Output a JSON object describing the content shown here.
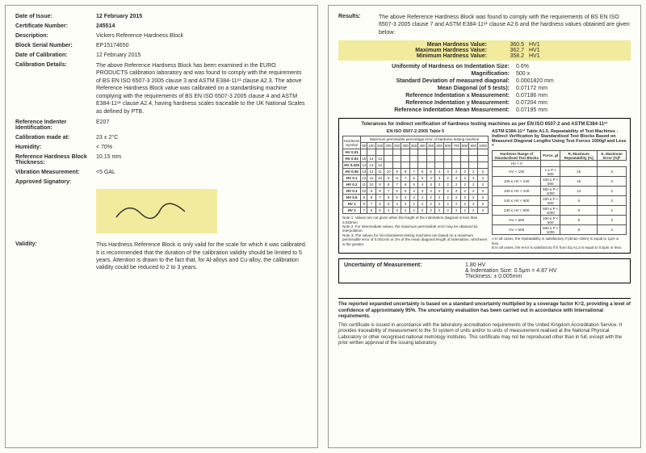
{
  "left": {
    "date_of_issue": {
      "label": "Date of Issue:",
      "value": "12 February 2015"
    },
    "cert_number": {
      "label": "Certificate Number:",
      "value": "245514"
    },
    "description": {
      "label": "Description:",
      "value": "Vickers Reference Hardness Block"
    },
    "serial": {
      "label": "Block Serial Number:",
      "value": "EP15174650"
    },
    "date_cal": {
      "label": "Date of Calibration:",
      "value": "12 February 2015"
    },
    "cal_details": {
      "label": "Calibration Details:",
      "value": "The above Reference Hardness Block has been examined in the EURO PRODUCTS calibration laboratory and was found to comply with the requirements of BS EN ISO 6507-3 2005 clause 3 and ASTM E384-11ᵉ¹ clause A2.3. The above Reference Hardness Block value was calibrated on a standardising machine complying with the requirements of BS EN ISO 6507-3 2005 clause 4 and ASTM E384-11ᵉ¹ clause A2.4, having hardness scales traceable to the UK National Scales as defined by PTB."
    },
    "indenter": {
      "label": "Reference Indenter Identification:",
      "value": "E207"
    },
    "cal_at": {
      "label": "Calibration made at:",
      "value": "23 ± 2°C"
    },
    "humidity": {
      "label": "Humidity:",
      "value": "< 70%"
    },
    "thickness": {
      "label": "Reference Hardness Block Thickness:",
      "value": "10.15 mm"
    },
    "vibration": {
      "label": "Vibration Measurement:",
      "value": "<5 GAL"
    },
    "signatory": {
      "label": "Approved Signatory:"
    },
    "validity": {
      "label": "Validity:",
      "value": "This Hardness Reference Block is only valid for the scale for which it was calibrated. It is recommended that the duration of the calibration validity should be limited to 5 years. Attention is drawn to the fact that, for Al-alloys and Cu-alloy, the calibration validity could be reduced to 2 to 3 years."
    }
  },
  "right": {
    "results": {
      "label": "Results:",
      "value": "The above Reference Hardness Block was found to comply with the requirements of BS EN ISO 6507-3 2005 clause 7 and ASTM E384-11ᵉ¹ clause A2.6 and the hardness values obtained are given below:"
    },
    "mean": {
      "label": "Mean Hardness Value:",
      "val": "360.5",
      "unit": "HV1"
    },
    "max": {
      "label": "Maximum Hardness Value:",
      "val": "362.7",
      "unit": "HV1"
    },
    "min": {
      "label": "Minimum Hardness Value:",
      "val": "358.2",
      "unit": "HV1"
    },
    "uniformity": {
      "label": "Uniformity of Hardness on Indentation Size:",
      "val": "0.6%"
    },
    "mag": {
      "label": "Magnification:",
      "val": "500 x"
    },
    "sd": {
      "label": "Standard Deviation of measured diagonal:",
      "val": "0.0001820 mm"
    },
    "mean_diag": {
      "label": "Mean Diagonal (of 5 tests):",
      "val": "0.07172 mm"
    },
    "ref_x": {
      "label": "Reference Indentation x Measurement:",
      "val": "0.07186 mm"
    },
    "ref_y": {
      "label": "Reference Indentation y Measurement:",
      "val": "0.07204 mm"
    },
    "ref_mean": {
      "label": "Reference Indentation Mean Measurement:",
      "val": "0.07195 mm"
    },
    "tol": {
      "title": "Tolerances for indirect verification of hardness testing machines as per EN ISO 6507-2 and ASTM E384-11ᵉ¹",
      "left_title": "EN ISO 6507-2:2005 Table 5",
      "left_sub": "Maximum permissible percentage error of hardness testing machine",
      "right_title": "ASTM E384-11ᵉ¹ Table A1.5. Repeatability of Test Machines - Indirect Verification by Standardised Test Blocks Based on Measured Diagonal Lengths Using Test Forces 1000gf and Less ᴬ",
      "left_rows": [
        "HV 0.01",
        "HV 0.02",
        "HV 0.025",
        "HV 0.05",
        "HV 0.1",
        "HV 0.2",
        "HV 0.3",
        "HV 0.5",
        "HV 1",
        "HV 2"
      ],
      "left_cols": [
        "50",
        "100",
        "150",
        "200",
        "250",
        "300",
        "350",
        "400",
        "450",
        "500",
        "600",
        "700",
        "800",
        "900",
        "1000"
      ],
      "right_rows": [
        [
          "HV < 0",
          "-",
          "-"
        ],
        [
          "HV < 100",
          "1 ≤ P < 500",
          "15",
          "3"
        ],
        [
          "100 ≤ HV < 240",
          "100 ≤ P < 500",
          "15",
          "3"
        ],
        [
          "100 ≤ HV < 240",
          "500 ≤ P < 1000",
          "13",
          "2"
        ],
        [
          "240 ≤ HV < 600",
          "100 ≤ P < 500",
          "9",
          "3"
        ],
        [
          "240 ≤ HV < 600",
          "500 ≤ P < 1000",
          "8",
          "2"
        ],
        [
          "HV > 600",
          "100 ≤ P < 500",
          "9",
          "3"
        ],
        [
          "HV > 600",
          "500 ≤ P < 1000",
          "8",
          "2"
        ]
      ],
      "right_heads": [
        "Hardness Range of Standardised Test Blocks",
        "Force, gf",
        "R, Maximum Repeatability (%)",
        "E, Maximum Error (%)ᴮ"
      ],
      "note1": "Note 1: Values are not given when the length of the indentation diagonal is less than 0.020mm",
      "note2": "Note 2: For intermediate values, the maximum permissible error may be obtained by interpolation.",
      "note3": "Note 3: The values for microhardness testing machines are based on a maximum permissible error of 0.001mm or 2% of the mean diagonal length of indentation, whichever is the greater.",
      "right_note1": "A In all cases, the repeatability is satisfactory if (dmax−dmin) is equal to 1μm or less.",
      "right_note2": "B In all cases, the error is satisfactory if E from Eq A1.2 is equal to 0.5μm or less."
    },
    "uom": {
      "label": "Uncertainty of Measurement:",
      "v1": "1.80 HV",
      "v2": "& Indentation Size: 0.5μm = 4.87 HV",
      "v3": "Thickness:  ± 0.005mm"
    },
    "footer1": "The reported expanded uncertainty is based on a standard uncertainty multiplied by a coverage factor K=2, providing a level of confidence of approximately 95%. The uncertainty evaluation has been carried out in accordance with International requirements.",
    "footer2": "This certificate is issued in accordance with the laboratory accreditation requirements of the United Kingdom Accreditation Service. It provides traceability of measurement to the SI system of units and/or to units of measurement realised at the National Physical Laboratory or other recognised national metrology institutes. This certificate may not be reproduced other than in full, except with the prior written approval of the issuing laboratory."
  }
}
